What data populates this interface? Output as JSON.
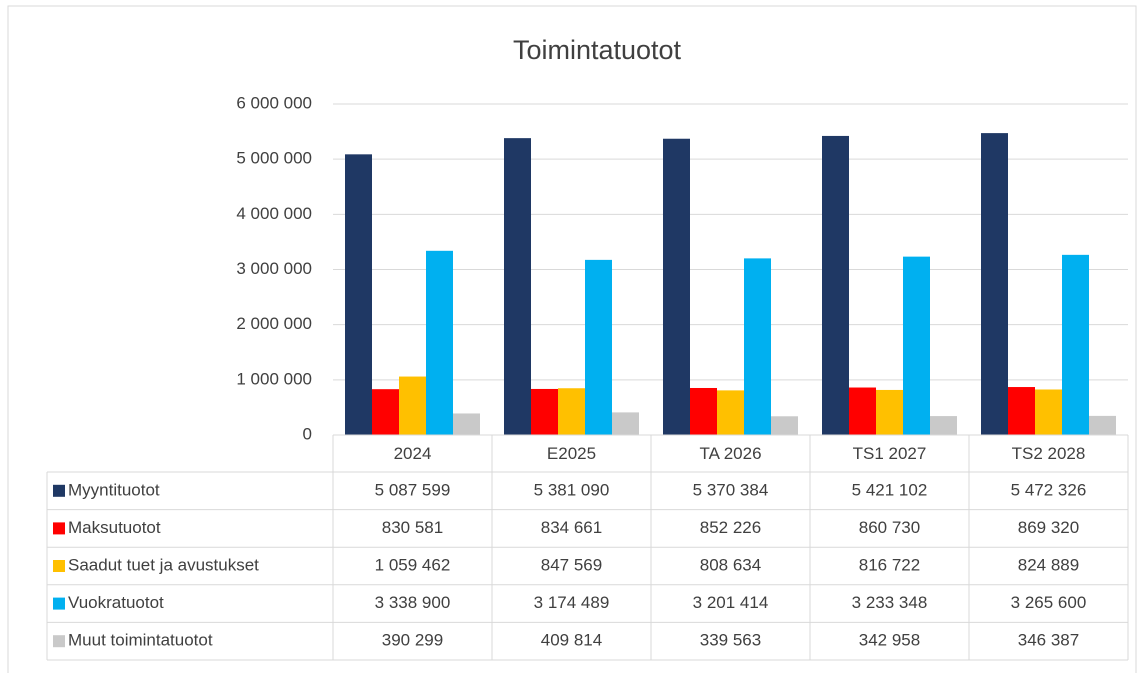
{
  "chart_data": {
    "type": "bar",
    "title": "Toimintatuotot",
    "categories": [
      "2024",
      "E2025",
      "TA 2026",
      "TS1 2027",
      "TS2 2028"
    ],
    "series": [
      {
        "name": "Myyntituotot",
        "color": "#1f3864",
        "values": [
          5087599,
          5381090,
          5370384,
          5421102,
          5472326
        ],
        "value_labels": [
          "5 087 599",
          "5 381 090",
          "5 370 384",
          "5 421 102",
          "5 472 326"
        ]
      },
      {
        "name": "Maksutuotot",
        "color": "#ff0000",
        "values": [
          830581,
          834661,
          852226,
          860730,
          869320
        ],
        "value_labels": [
          "830 581",
          "834 661",
          "852 226",
          "860 730",
          "869 320"
        ]
      },
      {
        "name": "Saadut tuet ja avustukset",
        "color": "#ffc000",
        "values": [
          1059462,
          847569,
          808634,
          816722,
          824889
        ],
        "value_labels": [
          "1 059 462",
          "847 569",
          "808 634",
          "816 722",
          "824 889"
        ]
      },
      {
        "name": "Vuokratuotot",
        "color": "#00b0f0",
        "values": [
          3338900,
          3174489,
          3201414,
          3233348,
          3265600
        ],
        "value_labels": [
          "3 338 900",
          "3 174 489",
          "3 201 414",
          "3 233 348",
          "3 265 600"
        ]
      },
      {
        "name": "Muut toimintatuotot",
        "color": "#c9c9c9",
        "values": [
          390299,
          409814,
          339563,
          342958,
          346387
        ],
        "value_labels": [
          "390 299",
          "409 814",
          "339 563",
          "342 958",
          "346 387"
        ]
      }
    ],
    "ylim": [
      0,
      6000000
    ],
    "yticks": [
      0,
      {
        "value": 1000000,
        "label": "1 000 000"
      },
      {
        "value": 2000000,
        "label": "2 000 000"
      },
      {
        "value": 3000000,
        "label": "3 000 000"
      },
      {
        "value": 4000000,
        "label": "4 000 000"
      },
      {
        "value": 5000000,
        "label": "5 000 000"
      },
      {
        "value": 6000000,
        "label": "6 000 000"
      }
    ],
    "grid": true
  }
}
